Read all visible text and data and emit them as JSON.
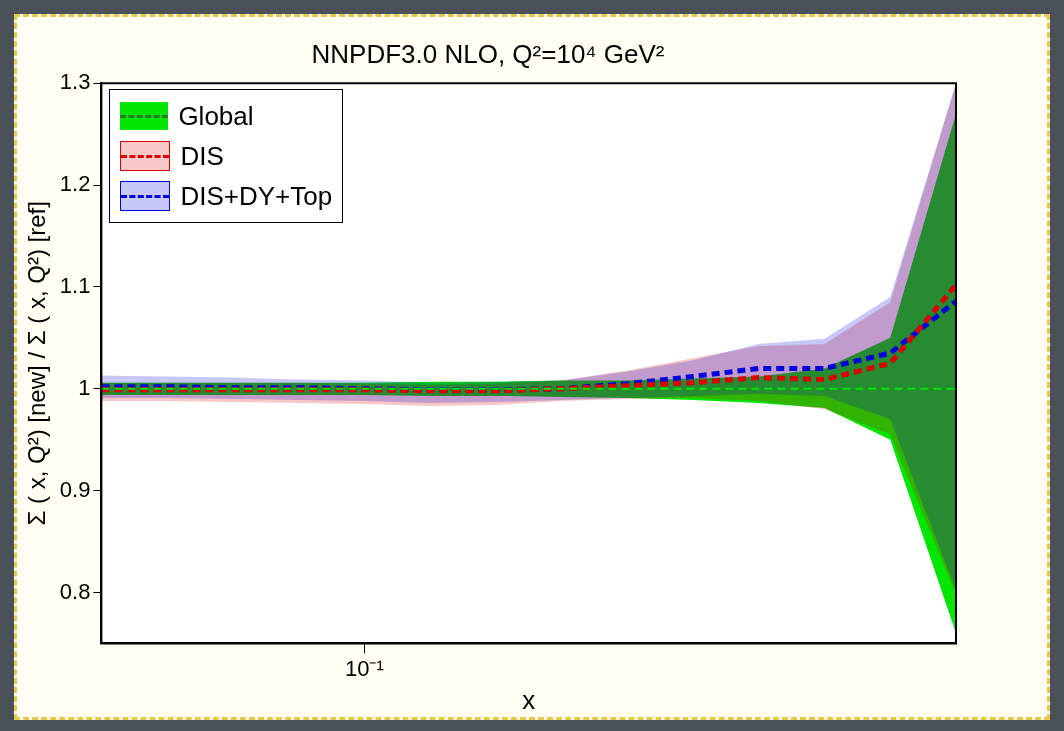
{
  "chart_data": {
    "type": "line",
    "title": "NNPDF3.0 NLO, Q²=10⁴ GeV²",
    "xlabel": "x",
    "ylabel": "Σ ( x, Q²) [new] / Σ ( x, Q²) [ref]",
    "categories": [
      null,
      null,
      null,
      null,
      "10⁻¹",
      null,
      null,
      null,
      null,
      null,
      null,
      null,
      null,
      null
    ],
    "ylim": [
      0.75,
      1.3
    ],
    "yticks": [
      0.8,
      0.9,
      1,
      1.1,
      1.2,
      1.3
    ],
    "legend": "top left",
    "line_style": "dashed",
    "series": [
      {
        "name": "Global",
        "color": "#00e600",
        "values": [
          1,
          1,
          1,
          1,
          1,
          1,
          1,
          1,
          1,
          1,
          1,
          1,
          1,
          1
        ],
        "lower": [
          0.994,
          0.994,
          0.994,
          0.994,
          0.994,
          0.993,
          0.993,
          0.992,
          0.991,
          0.989,
          0.986,
          0.981,
          0.95,
          0.76
        ],
        "upper": [
          1.006,
          1.006,
          1.006,
          1.006,
          1.006,
          1.007,
          1.007,
          1.008,
          1.008,
          1.01,
          1.012,
          1.02,
          1.05,
          1.27
        ]
      },
      {
        "name": "DIS",
        "color": "#dd0000",
        "values": [
          0.999,
          0.999,
          0.999,
          0.999,
          0.999,
          0.998,
          0.998,
          1.0,
          1.003,
          1.006,
          1.011,
          1.009,
          1.025,
          1.102
        ],
        "lower": [
          0.988,
          0.988,
          0.987,
          0.986,
          0.985,
          0.983,
          0.984,
          0.988,
          0.99,
          0.991,
          0.988,
          0.98,
          0.955,
          0.798
        ],
        "upper": [
          1.006,
          1.006,
          1.006,
          1.006,
          1.005,
          1.004,
          1.005,
          1.008,
          1.018,
          1.03,
          1.042,
          1.044,
          1.085,
          1.3
        ]
      },
      {
        "name": "DIS+DY+Top",
        "color": "#0000dd",
        "values": [
          1.002,
          1.002,
          1.001,
          1.001,
          1.0,
          0.999,
          0.999,
          1.0,
          1.005,
          1.012,
          1.02,
          1.02,
          1.035,
          1.086
        ],
        "lower": [
          0.991,
          0.991,
          0.99,
          0.989,
          0.988,
          0.986,
          0.987,
          0.989,
          0.991,
          0.993,
          0.995,
          0.993,
          0.97,
          0.802
        ],
        "upper": [
          1.013,
          1.012,
          1.011,
          1.009,
          1.008,
          1.006,
          1.007,
          1.008,
          1.017,
          1.028,
          1.044,
          1.049,
          1.09,
          1.3
        ]
      }
    ]
  }
}
